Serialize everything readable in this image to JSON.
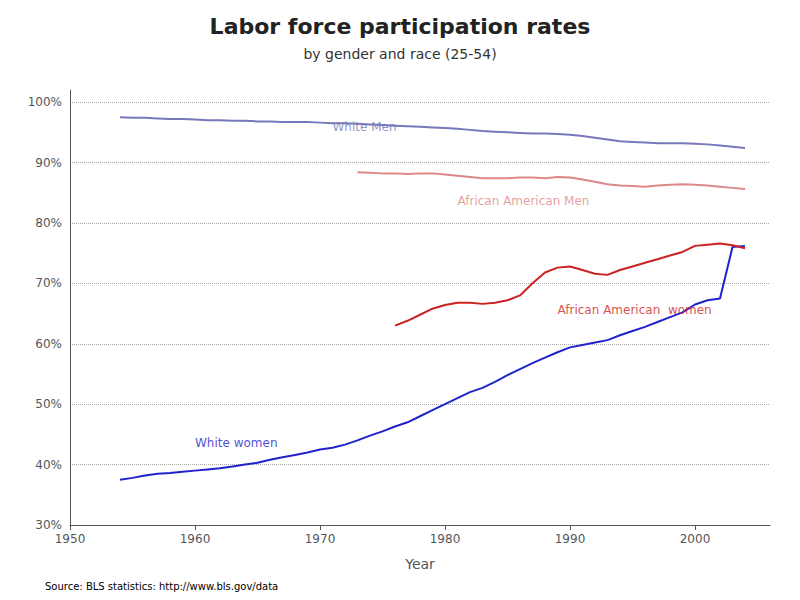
{
  "chart_data": {
    "type": "line",
    "title": "Labor force participation rates",
    "subtitle": "by gender and race (25-54)",
    "xlabel": "Year",
    "source": "Source: BLS statistics: http://www.bls.gov/data",
    "xlim": [
      1950,
      2006
    ],
    "xticks": [
      1950,
      1960,
      1970,
      1980,
      1990,
      2000
    ],
    "ylim": [
      0.3,
      1.02
    ],
    "yticks": [
      {
        "value": 0.3,
        "label": "30%"
      },
      {
        "value": 0.4,
        "label": "40%"
      },
      {
        "value": 0.5,
        "label": "50%"
      },
      {
        "value": 0.6,
        "label": "60%"
      },
      {
        "value": 0.7,
        "label": "70%"
      },
      {
        "value": 0.8,
        "label": "80%"
      },
      {
        "value": 0.9,
        "label": "90%"
      },
      {
        "value": 1.0,
        "label": "100%"
      }
    ],
    "grid": true,
    "series": [
      {
        "name": "White Men",
        "color": "#7777bb",
        "x": [
          1954,
          1955,
          1956,
          1957,
          1958,
          1959,
          1960,
          1961,
          1962,
          1963,
          1964,
          1965,
          1966,
          1967,
          1968,
          1969,
          1970,
          1971,
          1972,
          1973,
          1974,
          1975,
          1976,
          1977,
          1978,
          1979,
          1980,
          1981,
          1982,
          1983,
          1984,
          1985,
          1986,
          1987,
          1988,
          1989,
          1990,
          1991,
          1992,
          1993,
          1994,
          1995,
          1996,
          1997,
          1998,
          1999,
          2000,
          2001,
          2002,
          2003,
          2004
        ],
        "values": [
          0.975,
          0.974,
          0.974,
          0.973,
          0.972,
          0.972,
          0.971,
          0.97,
          0.97,
          0.969,
          0.969,
          0.968,
          0.968,
          0.967,
          0.967,
          0.967,
          0.966,
          0.965,
          0.965,
          0.964,
          0.963,
          0.962,
          0.961,
          0.96,
          0.959,
          0.958,
          0.957,
          0.956,
          0.954,
          0.952,
          0.951,
          0.95,
          0.949,
          0.948,
          0.948,
          0.947,
          0.946,
          0.944,
          0.941,
          0.938,
          0.935,
          0.934,
          0.933,
          0.932,
          0.932,
          0.932,
          0.931,
          0.93,
          0.928,
          0.926,
          0.924
        ]
      },
      {
        "name": "African American Men",
        "color": "#dd8888",
        "x": [
          1973,
          1974,
          1975,
          1976,
          1977,
          1978,
          1979,
          1980,
          1981,
          1982,
          1983,
          1984,
          1985,
          1986,
          1987,
          1988,
          1989,
          1990,
          1991,
          1992,
          1993,
          1994,
          1995,
          1996,
          1997,
          1998,
          1999,
          2000,
          2001,
          2002,
          2003,
          2004
        ],
        "values": [
          0.884,
          0.883,
          0.882,
          0.882,
          0.881,
          0.882,
          0.882,
          0.88,
          0.878,
          0.876,
          0.874,
          0.874,
          0.874,
          0.875,
          0.875,
          0.874,
          0.876,
          0.875,
          0.872,
          0.868,
          0.864,
          0.862,
          0.861,
          0.86,
          0.862,
          0.863,
          0.864,
          0.863,
          0.862,
          0.86,
          0.858,
          0.856
        ]
      },
      {
        "name": "White women",
        "color": "#2222cc",
        "x": [
          1954,
          1955,
          1956,
          1957,
          1958,
          1959,
          1960,
          1961,
          1962,
          1963,
          1964,
          1965,
          1966,
          1967,
          1968,
          1969,
          1970,
          1971,
          1972,
          1973,
          1974,
          1975,
          1976,
          1977,
          1978,
          1979,
          1980,
          1981,
          1982,
          1983,
          1984,
          1985,
          1986,
          1987,
          1988,
          1989,
          1990,
          1991,
          1992,
          1993,
          1994,
          1995,
          1996,
          1997,
          1998,
          1999,
          2000,
          2001,
          2002,
          2003,
          2004
        ],
        "values": [
          0.375,
          0.378,
          0.382,
          0.385,
          0.386,
          0.388,
          0.39,
          0.392,
          0.394,
          0.397,
          0.4,
          0.403,
          0.408,
          0.412,
          0.416,
          0.42,
          0.425,
          0.428,
          0.433,
          0.44,
          0.448,
          0.455,
          0.463,
          0.47,
          0.48,
          0.49,
          0.5,
          0.51,
          0.52,
          0.527,
          0.537,
          0.548,
          0.558,
          0.568,
          0.577,
          0.586,
          0.594,
          0.598,
          0.602,
          0.606,
          0.614,
          0.621,
          0.628,
          0.636,
          0.644,
          0.652,
          0.665,
          0.672,
          0.675,
          0.76,
          0.762
        ]
      },
      {
        "name": "African American  women",
        "color": "#cc2222",
        "x": [
          1976,
          1977,
          1978,
          1979,
          1980,
          1981,
          1982,
          1983,
          1984,
          1985,
          1986,
          1987,
          1988,
          1989,
          1990,
          1991,
          1992,
          1993,
          1994,
          1995,
          1996,
          1997,
          1998,
          1999,
          2000,
          2001,
          2002,
          2003,
          2004
        ],
        "values": [
          0.63,
          0.638,
          0.648,
          0.658,
          0.664,
          0.668,
          0.668,
          0.666,
          0.668,
          0.672,
          0.68,
          0.7,
          0.718,
          0.726,
          0.728,
          0.722,
          0.716,
          0.714,
          0.722,
          0.728,
          0.734,
          0.74,
          0.746,
          0.752,
          0.762,
          0.764,
          0.766,
          0.763,
          0.758
        ]
      }
    ],
    "annotations": [
      {
        "text": "White Men",
        "x": 1971,
        "y": 0.958,
        "color": "#7777bb"
      },
      {
        "text": "African American Men",
        "x": 1981,
        "y": 0.836,
        "color": "#dd8888"
      },
      {
        "text": "White women",
        "x": 1960,
        "y": 0.435,
        "color": "#2222cc"
      },
      {
        "text": "African American  women",
        "x": 1989,
        "y": 0.656,
        "color": "#cc2222"
      }
    ]
  }
}
